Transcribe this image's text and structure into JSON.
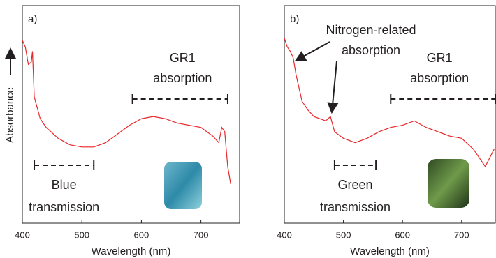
{
  "chart_data": [
    {
      "type": "line",
      "panel_label": "a)",
      "y_label": "Absorbance",
      "x_label": "Wavelength (nm)",
      "xlim": [
        400,
        765
      ],
      "ylim": [
        0,
        100
      ],
      "xticks": [
        400,
        500,
        600,
        700
      ],
      "x": [
        400,
        405,
        410,
        415,
        417,
        420,
        430,
        440,
        460,
        480,
        500,
        520,
        540,
        560,
        580,
        600,
        620,
        640,
        660,
        680,
        700,
        720,
        730,
        735,
        740,
        745,
        750
      ],
      "series": [
        {
          "color": "#e8272a",
          "values": [
            84,
            81,
            73,
            74,
            79,
            58,
            48,
            44,
            39,
            36,
            35,
            35,
            37,
            41,
            45,
            48,
            49,
            48,
            46,
            45,
            44,
            40,
            37,
            44,
            42,
            26,
            18
          ]
        }
      ],
      "annotations": [
        {
          "lines": [
            "GR1",
            "absorption"
          ],
          "range": [
            585,
            745
          ]
        },
        {
          "lines": [
            "Blue",
            "transmission"
          ],
          "range": [
            420,
            520
          ]
        }
      ]
    },
    {
      "type": "line",
      "panel_label": "b)",
      "x_label": "Wavelength (nm)",
      "xlim": [
        400,
        757
      ],
      "ylim": [
        0,
        100
      ],
      "xticks": [
        400,
        500,
        600,
        700
      ],
      "x": [
        400,
        405,
        410,
        415,
        420,
        430,
        440,
        450,
        460,
        470,
        478,
        485,
        500,
        520,
        540,
        560,
        580,
        600,
        620,
        640,
        660,
        680,
        700,
        720,
        740,
        755
      ],
      "series": [
        {
          "color": "#e8272a",
          "values": [
            85,
            81,
            79,
            76,
            68,
            56,
            52,
            49,
            48,
            47,
            49,
            42,
            39,
            37,
            39,
            42,
            44,
            45,
            47,
            44,
            42,
            40,
            39,
            34,
            26,
            34
          ]
        }
      ],
      "annotations": [
        {
          "lines": [
            "GR1",
            "absorption"
          ],
          "range": [
            580,
            757
          ]
        },
        {
          "lines": [
            "Green",
            "transmission"
          ],
          "range": [
            485,
            555
          ]
        }
      ],
      "callout": {
        "lines": [
          "Nitrogen-related",
          "absorption"
        ],
        "points": [
          417,
          478
        ]
      }
    }
  ]
}
